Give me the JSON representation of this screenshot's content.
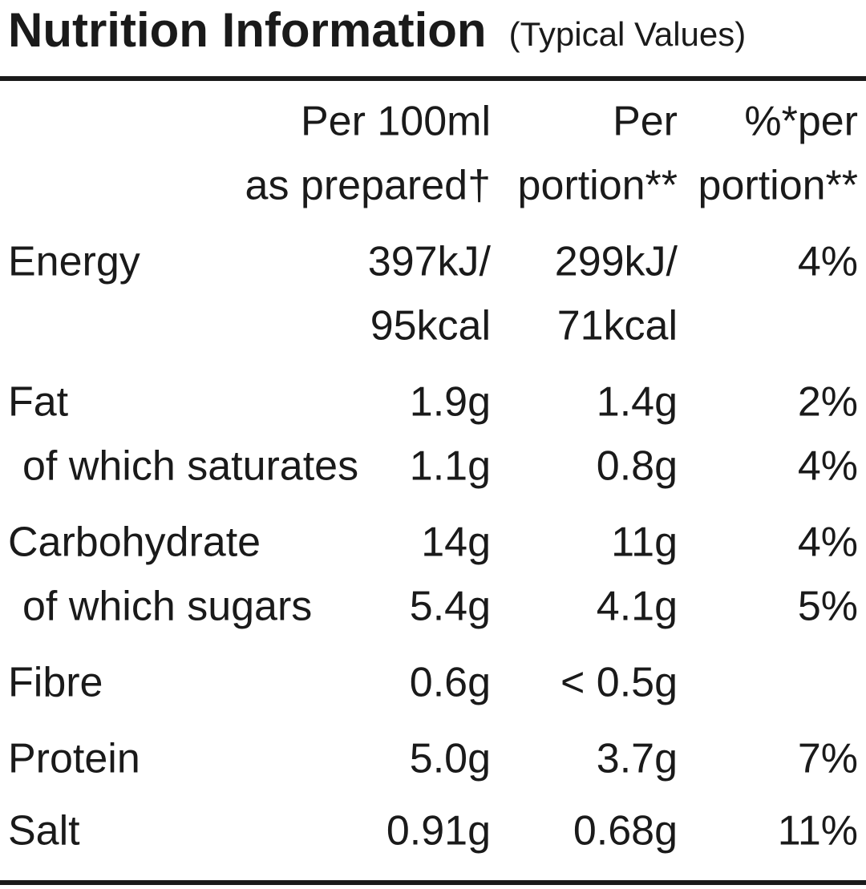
{
  "header": {
    "title": "Nutrition Information",
    "subtitle": "(Typical Values)"
  },
  "table": {
    "columns": [
      [
        "Per 100ml",
        "as prepared†"
      ],
      [
        "Per",
        "portion**"
      ],
      [
        "%*per",
        "portion**"
      ]
    ],
    "rows": [
      [
        [
          "Energy"
        ],
        [
          "397kJ/",
          "95kcal"
        ],
        [
          "299kJ/",
          "71kcal"
        ],
        [
          "4%"
        ]
      ],
      [
        [
          "Fat"
        ],
        [
          "1.9g"
        ],
        [
          "1.4g"
        ],
        [
          "2%"
        ]
      ],
      [
        [
          "of which saturates"
        ],
        [
          "1.1g"
        ],
        [
          "0.8g"
        ],
        [
          "4%"
        ]
      ],
      [
        [
          "Carbohydrate"
        ],
        [
          "14g"
        ],
        [
          "11g"
        ],
        [
          "4%"
        ]
      ],
      [
        [
          "of which sugars"
        ],
        [
          "5.4g"
        ],
        [
          "4.1g"
        ],
        [
          "5%"
        ]
      ],
      [
        [
          "Fibre"
        ],
        [
          "0.6g"
        ],
        [
          "< 0.5g"
        ],
        []
      ],
      [
        [
          "Protein"
        ],
        [
          "5.0g"
        ],
        [
          "3.7g"
        ],
        [
          "7%"
        ]
      ],
      [
        [
          "Salt"
        ],
        [
          "0.91g"
        ],
        [
          "0.68g"
        ],
        [
          "11%"
        ]
      ]
    ]
  }
}
